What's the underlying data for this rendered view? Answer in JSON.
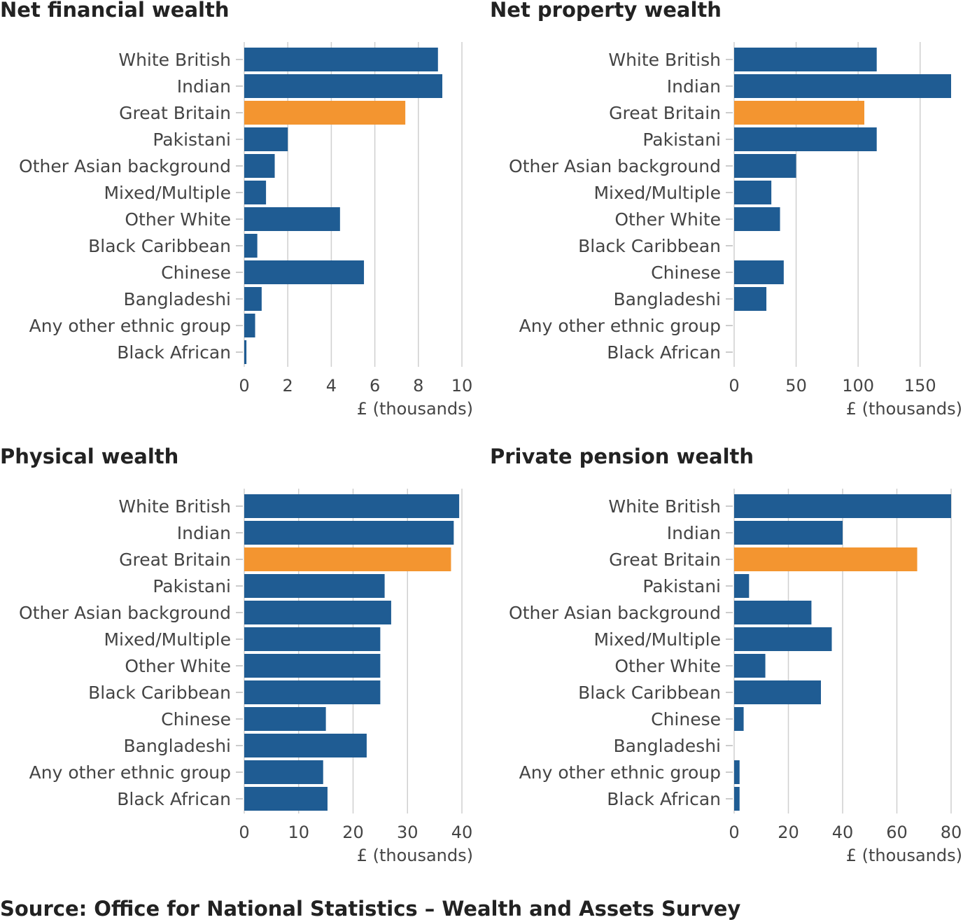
{
  "colors": {
    "bar": "#1f5c93",
    "highlight": "#f39530"
  },
  "source": "Source: Office for National Statistics – Wealth and Assets Survey",
  "chart_data": [
    {
      "type": "bar",
      "orientation": "horizontal",
      "title": "Net financial wealth",
      "xlabel": "£ (thousands)",
      "xlim": [
        0,
        10
      ],
      "ticks": [
        0,
        2,
        4,
        6,
        8,
        10
      ],
      "grid": true,
      "highlight": "Great Britain",
      "categories": [
        "White British",
        "Indian",
        "Great Britain",
        "Pakistani",
        "Other Asian background",
        "Mixed/Multiple",
        "Other White",
        "Black Caribbean",
        "Chinese",
        "Bangladeshi",
        "Any other ethnic group",
        "Black African"
      ],
      "values": [
        8.9,
        9.1,
        7.4,
        2.0,
        1.4,
        1.0,
        4.4,
        0.6,
        5.5,
        0.8,
        0.5,
        0.1
      ]
    },
    {
      "type": "bar",
      "orientation": "horizontal",
      "title": "Net property wealth",
      "xlabel": "£ (thousands)",
      "xlim": [
        0,
        175
      ],
      "ticks": [
        0,
        50,
        100,
        150
      ],
      "grid": true,
      "highlight": "Great Britain",
      "categories": [
        "White British",
        "Indian",
        "Great Britain",
        "Pakistani",
        "Other Asian background",
        "Mixed/Multiple",
        "Other White",
        "Black Caribbean",
        "Chinese",
        "Bangladeshi",
        "Any other ethnic group",
        "Black African"
      ],
      "values": [
        115,
        175,
        105,
        115,
        50,
        30,
        37,
        0,
        40,
        26,
        0,
        0
      ]
    },
    {
      "type": "bar",
      "orientation": "horizontal",
      "title": "Physical wealth",
      "xlabel": "£ (thousands)",
      "xlim": [
        0,
        40
      ],
      "ticks": [
        0,
        10,
        20,
        30,
        40
      ],
      "grid": true,
      "highlight": "Great Britain",
      "categories": [
        "White British",
        "Indian",
        "Great Britain",
        "Pakistani",
        "Other Asian background",
        "Mixed/Multiple",
        "Other White",
        "Black Caribbean",
        "Chinese",
        "Bangladeshi",
        "Any other ethnic group",
        "Black African"
      ],
      "values": [
        39.5,
        38.5,
        38.0,
        25.8,
        27.0,
        25.0,
        25.0,
        25.0,
        15.0,
        22.5,
        14.5,
        15.3
      ]
    },
    {
      "type": "bar",
      "orientation": "horizontal",
      "title": "Private pension wealth",
      "xlabel": "£ (thousands)",
      "xlim": [
        0,
        80
      ],
      "ticks": [
        0,
        20,
        40,
        60,
        80
      ],
      "grid": true,
      "highlight": "Great Britain",
      "categories": [
        "White British",
        "Indian",
        "Great Britain",
        "Pakistani",
        "Other Asian background",
        "Mixed/Multiple",
        "Other White",
        "Black Caribbean",
        "Chinese",
        "Bangladeshi",
        "Any other ethnic group",
        "Black African"
      ],
      "values": [
        80,
        40,
        67.5,
        5.5,
        28.5,
        36,
        11.5,
        32,
        3.5,
        0,
        2,
        2
      ]
    }
  ]
}
